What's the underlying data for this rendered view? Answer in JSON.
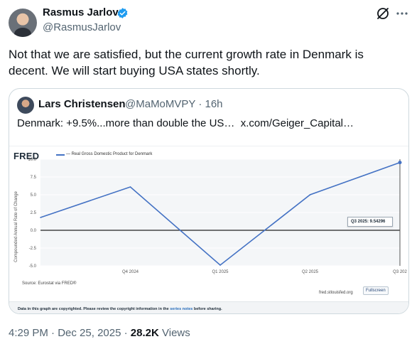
{
  "tweet": {
    "author_name": "Rasmus Jarlov",
    "author_handle": "@RasmusJarlov",
    "text": "Not that we are satisfied, but the current growth rate in Denmark is decent. We will start buying USA states shortly.",
    "time": "4:29 PM",
    "date": "Dec 25, 2025",
    "views_count": "28.2K",
    "views_label": "Views",
    "dot": "·"
  },
  "quote": {
    "author_name": "Lars Christensen",
    "author_handle": "@MaMoMVPY",
    "age": "16h",
    "text_main": "Denmark: +9.5%...more than double the US…",
    "text_link": "x.com/Geiger_Capital…"
  },
  "fred": {
    "logo": "FRED",
    "legend": "— Real Gross Domestic Product for Denmark",
    "ylabel": "Compounded Annual Rate of Change",
    "source": "Source: Eurostat via FRED®",
    "url": "fred.stlouisfed.org",
    "fullscreen": "Fullscreen",
    "tooltip": "Q3 2025:  9.54296",
    "footer_pre": "Data in this graph are copyrighted. Please review the copyright information in the ",
    "footer_link": "series notes",
    "footer_post": " before sharing."
  },
  "chart_data": {
    "type": "line",
    "title": "",
    "xlabel": "",
    "ylabel": "Compounded Annual Rate of Change",
    "x_tick_labels": [
      "Q4 2024",
      "Q1 2025",
      "Q2 2025",
      "Q3 202"
    ],
    "y_ticks": [
      "10.0",
      "7.5",
      "5.0",
      "2.5",
      "0.0",
      "-2.5",
      "-5.0"
    ],
    "ylim": [
      -5,
      10
    ],
    "series": [
      {
        "name": "Real Gross Domestic Product for Denmark",
        "x": [
          "Q3 2024",
          "Q4 2024",
          "Q1 2025",
          "Q2 2025",
          "Q3 2025"
        ],
        "values": [
          1.8,
          6.1,
          -4.9,
          5.0,
          9.54
        ]
      }
    ],
    "line_color": "#4472c4",
    "grid": true
  },
  "colors": {
    "text": "#0f1419",
    "secondary": "#536471",
    "border": "#cfd9de",
    "verified": "#1d9bf0"
  }
}
